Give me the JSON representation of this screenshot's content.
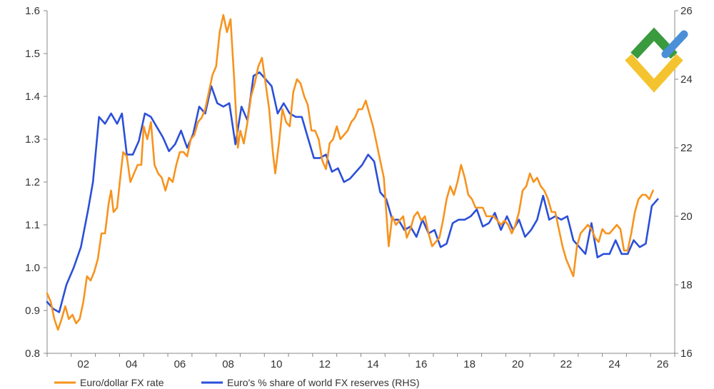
{
  "chart_data": {
    "type": "line",
    "title": "",
    "xlabel": "",
    "ylabel": "",
    "ylabel_right": "",
    "x_tick_labels": [
      "02",
      "04",
      "06",
      "08",
      "10",
      "12",
      "14",
      "16",
      "18",
      "20",
      "22",
      "24",
      "26"
    ],
    "x_tick_years": [
      2002,
      2004,
      2006,
      2008,
      2010,
      2012,
      2014,
      2016,
      2018,
      2020,
      2022,
      2024,
      2026
    ],
    "xlim": [
      2001.0,
      2027.0
    ],
    "ylim_left": [
      0.8,
      1.6
    ],
    "ylim_right": [
      16,
      26
    ],
    "y_ticks_left": [
      "0.8",
      "0.9",
      "1.0",
      "1.1",
      "1.2",
      "1.3",
      "1.4",
      "1.5",
      "1.6"
    ],
    "y_ticks_right": [
      "16",
      "18",
      "20",
      "22",
      "24",
      "26"
    ],
    "legend_position": "bottom",
    "series": [
      {
        "name": "Euro/dollar FX rate",
        "axis": "left",
        "color": "#f7931e",
        "points": [
          [
            2001.0,
            0.94
          ],
          [
            2001.15,
            0.92
          ],
          [
            2001.3,
            0.88
          ],
          [
            2001.45,
            0.855
          ],
          [
            2001.6,
            0.88
          ],
          [
            2001.75,
            0.91
          ],
          [
            2001.9,
            0.88
          ],
          [
            2002.05,
            0.89
          ],
          [
            2002.2,
            0.87
          ],
          [
            2002.35,
            0.88
          ],
          [
            2002.5,
            0.92
          ],
          [
            2002.65,
            0.98
          ],
          [
            2002.8,
            0.97
          ],
          [
            2002.95,
            0.99
          ],
          [
            2003.1,
            1.02
          ],
          [
            2003.25,
            1.08
          ],
          [
            2003.4,
            1.08
          ],
          [
            2003.55,
            1.15
          ],
          [
            2003.65,
            1.18
          ],
          [
            2003.75,
            1.13
          ],
          [
            2003.9,
            1.14
          ],
          [
            2004.05,
            1.22
          ],
          [
            2004.15,
            1.27
          ],
          [
            2004.3,
            1.26
          ],
          [
            2004.45,
            1.2
          ],
          [
            2004.6,
            1.22
          ],
          [
            2004.75,
            1.24
          ],
          [
            2004.9,
            1.24
          ],
          [
            2005.0,
            1.33
          ],
          [
            2005.15,
            1.3
          ],
          [
            2005.3,
            1.34
          ],
          [
            2005.45,
            1.24
          ],
          [
            2005.6,
            1.22
          ],
          [
            2005.75,
            1.21
          ],
          [
            2005.9,
            1.18
          ],
          [
            2006.05,
            1.21
          ],
          [
            2006.2,
            1.2
          ],
          [
            2006.35,
            1.24
          ],
          [
            2006.5,
            1.27
          ],
          [
            2006.65,
            1.27
          ],
          [
            2006.8,
            1.26
          ],
          [
            2006.95,
            1.3
          ],
          [
            2007.1,
            1.31
          ],
          [
            2007.25,
            1.34
          ],
          [
            2007.4,
            1.35
          ],
          [
            2007.55,
            1.37
          ],
          [
            2007.7,
            1.41
          ],
          [
            2007.85,
            1.45
          ],
          [
            2008.0,
            1.47
          ],
          [
            2008.15,
            1.55
          ],
          [
            2008.3,
            1.59
          ],
          [
            2008.45,
            1.55
          ],
          [
            2008.6,
            1.58
          ],
          [
            2008.75,
            1.44
          ],
          [
            2008.9,
            1.28
          ],
          [
            2009.0,
            1.32
          ],
          [
            2009.15,
            1.29
          ],
          [
            2009.3,
            1.34
          ],
          [
            2009.45,
            1.4
          ],
          [
            2009.6,
            1.43
          ],
          [
            2009.75,
            1.47
          ],
          [
            2009.9,
            1.49
          ],
          [
            2010.05,
            1.43
          ],
          [
            2010.2,
            1.37
          ],
          [
            2010.35,
            1.27
          ],
          [
            2010.45,
            1.22
          ],
          [
            2010.6,
            1.29
          ],
          [
            2010.75,
            1.37
          ],
          [
            2010.9,
            1.34
          ],
          [
            2011.05,
            1.33
          ],
          [
            2011.2,
            1.41
          ],
          [
            2011.35,
            1.44
          ],
          [
            2011.5,
            1.43
          ],
          [
            2011.65,
            1.4
          ],
          [
            2011.8,
            1.38
          ],
          [
            2011.95,
            1.32
          ],
          [
            2012.1,
            1.32
          ],
          [
            2012.25,
            1.3
          ],
          [
            2012.4,
            1.25
          ],
          [
            2012.55,
            1.23
          ],
          [
            2012.7,
            1.29
          ],
          [
            2012.85,
            1.3
          ],
          [
            2013.0,
            1.33
          ],
          [
            2013.15,
            1.3
          ],
          [
            2013.3,
            1.31
          ],
          [
            2013.45,
            1.32
          ],
          [
            2013.6,
            1.34
          ],
          [
            2013.75,
            1.35
          ],
          [
            2013.9,
            1.37
          ],
          [
            2014.05,
            1.37
          ],
          [
            2014.2,
            1.39
          ],
          [
            2014.35,
            1.36
          ],
          [
            2014.5,
            1.33
          ],
          [
            2014.65,
            1.29
          ],
          [
            2014.8,
            1.25
          ],
          [
            2014.95,
            1.21
          ],
          [
            2015.05,
            1.13
          ],
          [
            2015.15,
            1.05
          ],
          [
            2015.3,
            1.12
          ],
          [
            2015.45,
            1.1
          ],
          [
            2015.6,
            1.11
          ],
          [
            2015.75,
            1.12
          ],
          [
            2015.9,
            1.07
          ],
          [
            2016.05,
            1.09
          ],
          [
            2016.2,
            1.12
          ],
          [
            2016.35,
            1.13
          ],
          [
            2016.5,
            1.11
          ],
          [
            2016.65,
            1.12
          ],
          [
            2016.8,
            1.08
          ],
          [
            2016.95,
            1.05
          ],
          [
            2017.1,
            1.06
          ],
          [
            2017.25,
            1.07
          ],
          [
            2017.4,
            1.11
          ],
          [
            2017.55,
            1.16
          ],
          [
            2017.7,
            1.19
          ],
          [
            2017.85,
            1.17
          ],
          [
            2018.0,
            1.2
          ],
          [
            2018.15,
            1.24
          ],
          [
            2018.3,
            1.21
          ],
          [
            2018.45,
            1.17
          ],
          [
            2018.6,
            1.16
          ],
          [
            2018.75,
            1.14
          ],
          [
            2018.9,
            1.14
          ],
          [
            2019.05,
            1.14
          ],
          [
            2019.2,
            1.12
          ],
          [
            2019.35,
            1.12
          ],
          [
            2019.5,
            1.12
          ],
          [
            2019.65,
            1.11
          ],
          [
            2019.8,
            1.1
          ],
          [
            2019.95,
            1.11
          ],
          [
            2020.1,
            1.1
          ],
          [
            2020.25,
            1.08
          ],
          [
            2020.4,
            1.1
          ],
          [
            2020.55,
            1.13
          ],
          [
            2020.7,
            1.18
          ],
          [
            2020.85,
            1.19
          ],
          [
            2021.0,
            1.22
          ],
          [
            2021.15,
            1.2
          ],
          [
            2021.3,
            1.21
          ],
          [
            2021.45,
            1.19
          ],
          [
            2021.6,
            1.18
          ],
          [
            2021.75,
            1.16
          ],
          [
            2021.9,
            1.13
          ],
          [
            2022.05,
            1.13
          ],
          [
            2022.2,
            1.09
          ],
          [
            2022.35,
            1.05
          ],
          [
            2022.5,
            1.02
          ],
          [
            2022.65,
            1.0
          ],
          [
            2022.8,
            0.98
          ],
          [
            2022.95,
            1.05
          ],
          [
            2023.1,
            1.08
          ],
          [
            2023.25,
            1.09
          ],
          [
            2023.4,
            1.1
          ],
          [
            2023.55,
            1.09
          ],
          [
            2023.7,
            1.07
          ],
          [
            2023.85,
            1.06
          ],
          [
            2024.0,
            1.09
          ],
          [
            2024.15,
            1.08
          ],
          [
            2024.3,
            1.08
          ],
          [
            2024.45,
            1.09
          ],
          [
            2024.6,
            1.1
          ],
          [
            2024.75,
            1.09
          ],
          [
            2024.9,
            1.04
          ],
          [
            2025.05,
            1.04
          ],
          [
            2025.2,
            1.08
          ],
          [
            2025.35,
            1.13
          ],
          [
            2025.5,
            1.16
          ],
          [
            2025.65,
            1.17
          ],
          [
            2025.8,
            1.17
          ],
          [
            2025.95,
            1.16
          ],
          [
            2026.1,
            1.18
          ]
        ]
      },
      {
        "name": "Euro's % share of world FX reserves (RHS)",
        "axis": "right",
        "color": "#2b4fd8",
        "points": [
          [
            2001.0,
            17.5
          ],
          [
            2001.25,
            17.3
          ],
          [
            2001.5,
            17.2
          ],
          [
            2001.8,
            18.0
          ],
          [
            2002.1,
            18.5
          ],
          [
            2002.4,
            19.1
          ],
          [
            2002.7,
            20.2
          ],
          [
            2002.9,
            21.0
          ],
          [
            2003.15,
            22.9
          ],
          [
            2003.4,
            22.7
          ],
          [
            2003.65,
            23.0
          ],
          [
            2003.9,
            22.7
          ],
          [
            2004.1,
            23.0
          ],
          [
            2004.3,
            21.8
          ],
          [
            2004.55,
            21.8
          ],
          [
            2004.8,
            22.2
          ],
          [
            2005.05,
            23.0
          ],
          [
            2005.3,
            22.9
          ],
          [
            2005.55,
            22.6
          ],
          [
            2005.8,
            22.3
          ],
          [
            2006.05,
            21.9
          ],
          [
            2006.3,
            22.1
          ],
          [
            2006.55,
            22.5
          ],
          [
            2006.8,
            22.0
          ],
          [
            2007.05,
            22.4
          ],
          [
            2007.3,
            23.2
          ],
          [
            2007.55,
            23.0
          ],
          [
            2007.8,
            23.8
          ],
          [
            2008.05,
            23.3
          ],
          [
            2008.3,
            23.2
          ],
          [
            2008.55,
            23.3
          ],
          [
            2008.8,
            22.1
          ],
          [
            2009.05,
            23.2
          ],
          [
            2009.3,
            22.8
          ],
          [
            2009.55,
            24.1
          ],
          [
            2009.8,
            24.2
          ],
          [
            2010.05,
            24.0
          ],
          [
            2010.3,
            23.8
          ],
          [
            2010.55,
            23.0
          ],
          [
            2010.8,
            23.3
          ],
          [
            2011.05,
            23.0
          ],
          [
            2011.3,
            22.9
          ],
          [
            2011.55,
            22.9
          ],
          [
            2011.8,
            22.3
          ],
          [
            2012.05,
            21.7
          ],
          [
            2012.3,
            21.7
          ],
          [
            2012.55,
            21.8
          ],
          [
            2012.8,
            21.3
          ],
          [
            2013.05,
            21.4
          ],
          [
            2013.3,
            21.0
          ],
          [
            2013.55,
            21.1
          ],
          [
            2013.8,
            21.3
          ],
          [
            2014.05,
            21.5
          ],
          [
            2014.3,
            21.8
          ],
          [
            2014.55,
            21.6
          ],
          [
            2014.8,
            20.7
          ],
          [
            2015.05,
            20.5
          ],
          [
            2015.3,
            19.9
          ],
          [
            2015.55,
            19.9
          ],
          [
            2015.8,
            19.6
          ],
          [
            2016.05,
            19.7
          ],
          [
            2016.3,
            19.4
          ],
          [
            2016.55,
            19.9
          ],
          [
            2016.8,
            19.5
          ],
          [
            2017.05,
            19.6
          ],
          [
            2017.3,
            19.1
          ],
          [
            2017.55,
            19.2
          ],
          [
            2017.8,
            19.8
          ],
          [
            2018.05,
            19.9
          ],
          [
            2018.3,
            19.9
          ],
          [
            2018.55,
            20.0
          ],
          [
            2018.8,
            20.2
          ],
          [
            2019.05,
            19.7
          ],
          [
            2019.3,
            19.8
          ],
          [
            2019.55,
            20.1
          ],
          [
            2019.8,
            19.6
          ],
          [
            2020.05,
            20.0
          ],
          [
            2020.3,
            19.6
          ],
          [
            2020.55,
            19.9
          ],
          [
            2020.8,
            19.4
          ],
          [
            2021.05,
            19.6
          ],
          [
            2021.3,
            19.9
          ],
          [
            2021.55,
            20.6
          ],
          [
            2021.8,
            19.9
          ],
          [
            2022.05,
            20.0
          ],
          [
            2022.3,
            19.9
          ],
          [
            2022.55,
            20.0
          ],
          [
            2022.8,
            19.3
          ],
          [
            2023.05,
            19.1
          ],
          [
            2023.3,
            18.9
          ],
          [
            2023.55,
            19.8
          ],
          [
            2023.8,
            18.8
          ],
          [
            2024.05,
            18.9
          ],
          [
            2024.3,
            18.9
          ],
          [
            2024.55,
            19.3
          ],
          [
            2024.8,
            18.9
          ],
          [
            2025.05,
            18.9
          ],
          [
            2025.3,
            19.3
          ],
          [
            2025.55,
            19.1
          ],
          [
            2025.8,
            19.2
          ],
          [
            2026.05,
            20.3
          ],
          [
            2026.3,
            20.5
          ]
        ]
      }
    ]
  },
  "logo": {
    "colors": {
      "green": "#3a9a3e",
      "yellow": "#f4c430",
      "blue": "#4a8fd8"
    }
  }
}
